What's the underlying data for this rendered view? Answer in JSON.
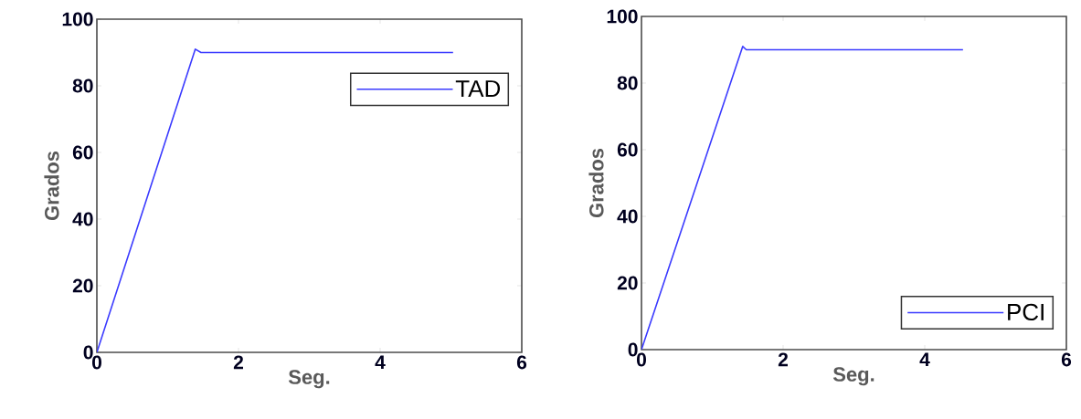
{
  "chart_data": [
    {
      "type": "line",
      "xlabel": "Seg.",
      "ylabel": "Grados",
      "x": [
        0,
        1.39,
        1.47,
        5.03
      ],
      "series": [
        {
          "name": "TAD",
          "color": "#3b3bff",
          "values": [
            0,
            91,
            90,
            90
          ]
        }
      ],
      "xlim": [
        0,
        6
      ],
      "ylim": [
        0,
        100
      ],
      "xticks": [
        0,
        2,
        4,
        6
      ],
      "yticks": [
        0,
        20,
        40,
        60,
        80,
        100
      ],
      "legend": "top right",
      "line_style": "solid"
    },
    {
      "type": "line",
      "xlabel": "Seg.",
      "ylabel": "Grados",
      "x": [
        0,
        1.43,
        1.48,
        4.54
      ],
      "series": [
        {
          "name": "PCI",
          "color": "#3b3bff",
          "values": [
            0,
            91,
            90,
            90
          ]
        }
      ],
      "xlim": [
        0,
        6
      ],
      "ylim": [
        0,
        100
      ],
      "xticks": [
        0,
        2,
        4,
        6
      ],
      "yticks": [
        0,
        20,
        40,
        60,
        80,
        100
      ],
      "legend": "bottom right",
      "line_style": "solid"
    }
  ]
}
